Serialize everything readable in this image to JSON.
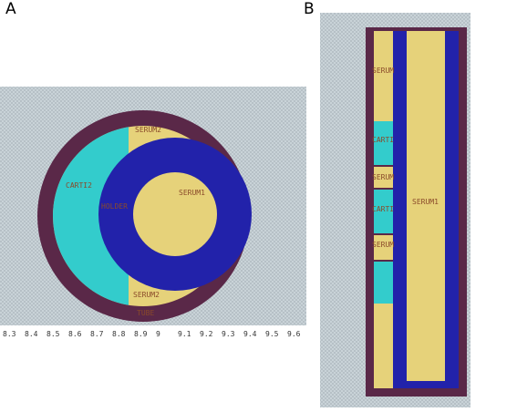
{
  "panels": [
    {
      "letter": "A"
    },
    {
      "letter": "B"
    }
  ],
  "panel_a": {
    "labels": {
      "serum2_top": "SERUM2",
      "carti2": "CARTI2",
      "holder": "HOLDER",
      "serum1": "SERUM1",
      "serum2_bottom": "SERUM2",
      "tube": "TUBE"
    },
    "axis_ticks": [
      "8.3",
      "8.4",
      "8.5",
      "8.6",
      "8.7",
      "8.8",
      "8.9",
      "9",
      "9.1",
      "9.2",
      "9.3",
      "9.4",
      "9.5",
      "9.6"
    ]
  },
  "panel_b": {
    "labels": {
      "serum_a": "SERUM",
      "carti_a": "CARTI",
      "carti_b": "CARTI",
      "serum_b": "SERUM",
      "serum_c": "SERUM",
      "serum1": "SERUM1"
    }
  },
  "colors": {
    "tube": "#5a2848",
    "serum": "#e6d27a",
    "cartilage": "#33cccc",
    "holder": "#2222aa",
    "background": "#c8d2d8"
  }
}
